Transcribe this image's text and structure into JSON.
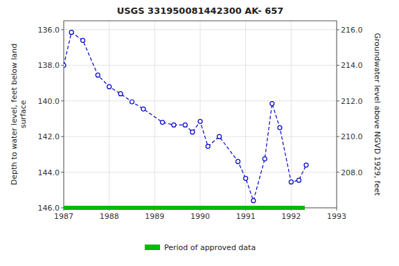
{
  "chart_data": {
    "type": "line",
    "title": "USGS 331950081442300 AK- 657",
    "ylabel": "Depth to water level, feet below land\nsurface",
    "y2label": "Groundwater level above NGVD 1929, feet",
    "xlim": [
      1987.0,
      1993.0
    ],
    "xticks": [
      1987,
      1988,
      1989,
      1990,
      1991,
      1992,
      1993
    ],
    "ylim": [
      146.0,
      135.5
    ],
    "yticks": [
      {
        "value": 136.0,
        "label": "136.0"
      },
      {
        "value": 138.0,
        "label": "138.0"
      },
      {
        "value": 140.0,
        "label": "140.0"
      },
      {
        "value": 142.0,
        "label": "142.0"
      },
      {
        "value": 144.0,
        "label": "144.0"
      },
      {
        "value": 146.0,
        "label": "146.0"
      }
    ],
    "y2lim": [
      206.0,
      216.5
    ],
    "y2ticks": [
      {
        "value": 208.0,
        "label": "208.0"
      },
      {
        "value": 210.0,
        "label": "210.0"
      },
      {
        "value": 212.0,
        "label": "212.0"
      },
      {
        "value": 214.0,
        "label": "214.0"
      },
      {
        "value": 216.0,
        "label": "216.0"
      }
    ],
    "grid": true,
    "legend": "bottom",
    "series": [
      {
        "type": "line",
        "color": "#0000cc",
        "marker": "open-circle",
        "line_style": "dashed",
        "x": [
          1987.0,
          1987.17,
          1987.42,
          1987.75,
          1988.0,
          1988.25,
          1988.5,
          1988.75,
          1989.17,
          1989.42,
          1989.67,
          1989.83,
          1990.0,
          1990.17,
          1990.42,
          1990.83,
          1991.0,
          1991.17,
          1991.42,
          1991.58,
          1991.75,
          1992.0,
          1992.17,
          1992.33
        ],
        "values": [
          138.0,
          136.15,
          136.6,
          138.55,
          139.2,
          139.6,
          140.05,
          140.45,
          141.2,
          141.35,
          141.35,
          141.75,
          141.15,
          142.55,
          142.0,
          143.4,
          144.35,
          145.6,
          143.25,
          140.15,
          141.5,
          144.55,
          144.45,
          143.6
        ]
      },
      {
        "type": "band",
        "name": "Period of approved data",
        "color": "#00bb00",
        "line_style": "solid",
        "x": [
          1987.0,
          1992.3
        ],
        "values": [
          146.0,
          146.0
        ]
      }
    ]
  }
}
